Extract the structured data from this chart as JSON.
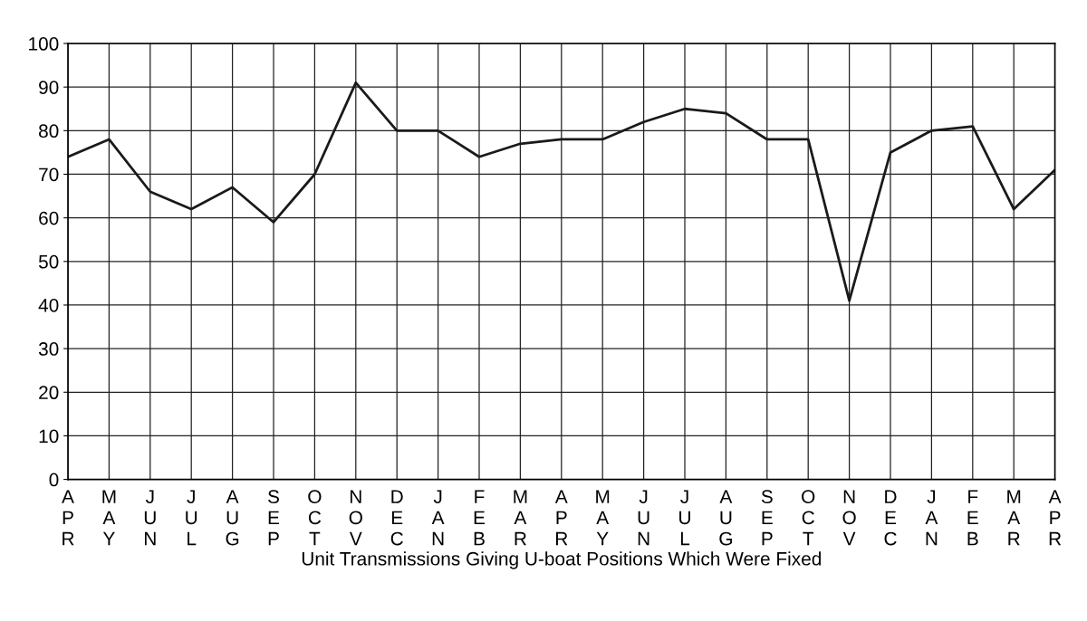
{
  "chart_data": {
    "type": "line",
    "xlabel": "Unit Transmissions Giving U-boat Positions Which Were Fixed",
    "categories": [
      "A\nP\nR",
      "M\nA\nY",
      "J\nU\nN",
      "J\nU\nL",
      "A\nU\nG",
      "S\nE\nP",
      "O\nC\nT",
      "N\nO\nV",
      "D\nE\nC",
      "J\nA\nN",
      "F\nE\nB",
      "M\nA\nR",
      "A\nP\nR",
      "M\nA\nY",
      "J\nU\nN",
      "J\nU\nL",
      "A\nU\nG",
      "S\nE\nP",
      "O\nC\nT",
      "N\nO\nV",
      "D\nE\nC",
      "J\nA\nN",
      "F\nE\nB",
      "M\nA\nR",
      "A\nP\nR"
    ],
    "series": [
      {
        "color": "#1a1a1a",
        "values": [
          74,
          78,
          66,
          62,
          67,
          59,
          70,
          91,
          80,
          80,
          74,
          77,
          78,
          78,
          82,
          85,
          84,
          78,
          78,
          41,
          75,
          80,
          81,
          62,
          71
        ]
      }
    ],
    "ylim": [
      0,
      100
    ],
    "yticks": [
      0,
      10,
      20,
      30,
      40,
      50,
      60,
      70,
      80,
      90,
      100
    ],
    "grid": true,
    "marker": "none",
    "line_style": "solid",
    "legend": false
  }
}
